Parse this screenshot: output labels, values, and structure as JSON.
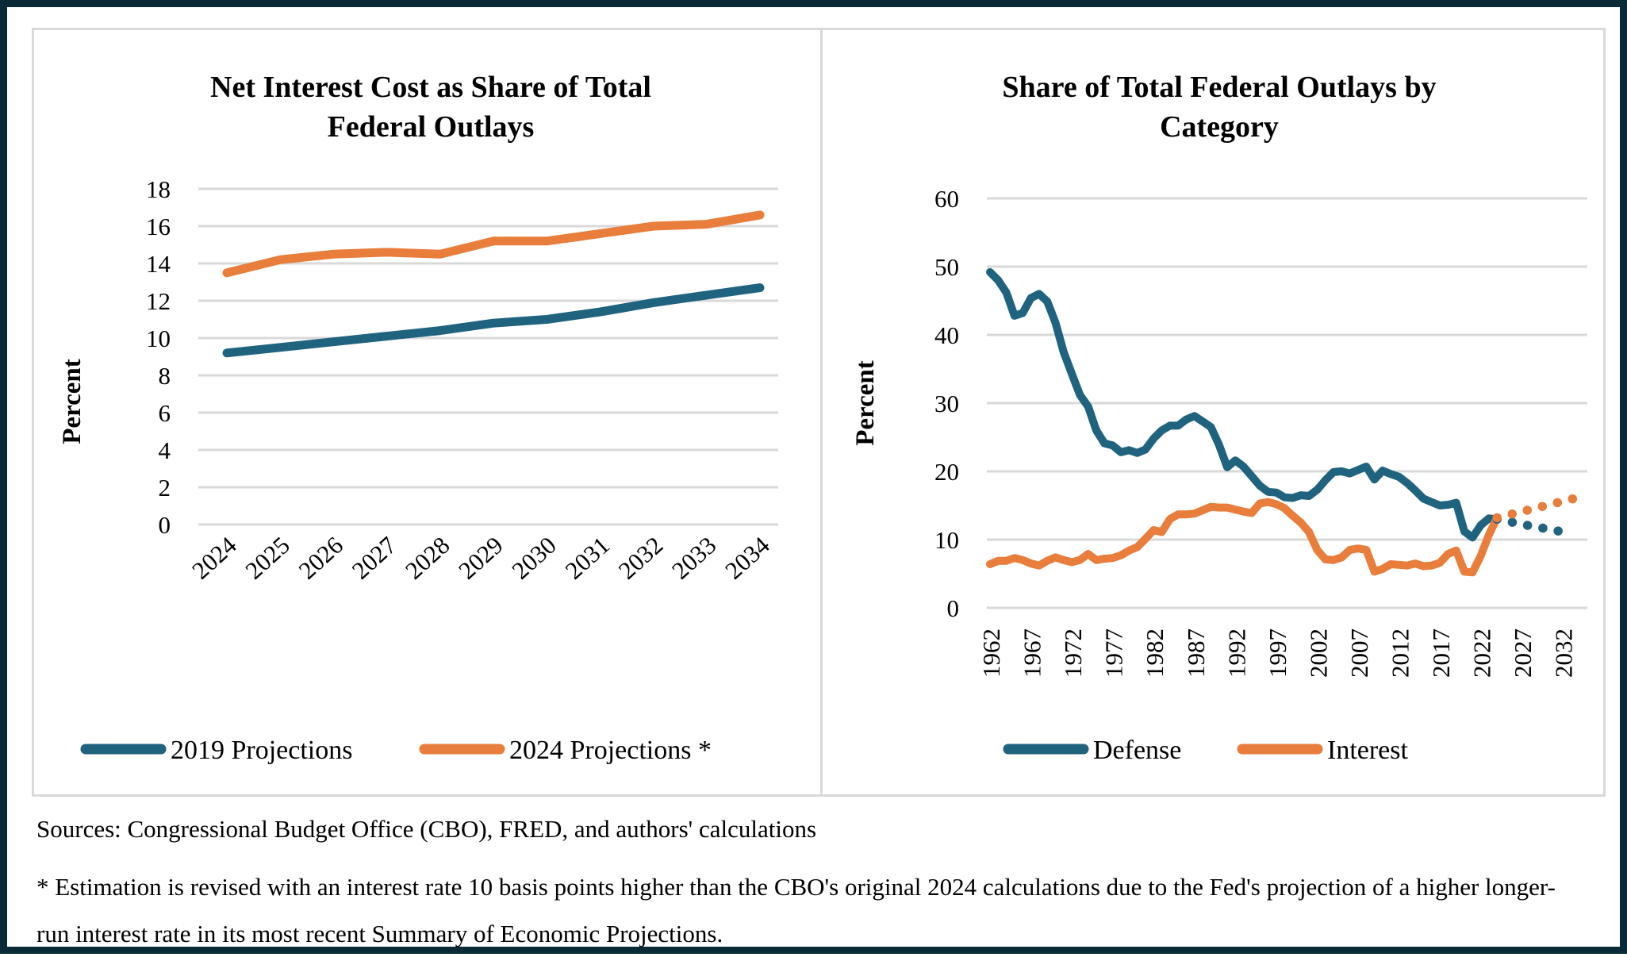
{
  "frame": {
    "outer_border_color": "#0a2a38",
    "panel_border_color": "#d9d9d9",
    "gridline_color": "#d9d9d9",
    "defense_blue": "#20637f",
    "interest_orange": "#e87d3c"
  },
  "footer": {
    "sources": "Sources: Congressional Budget Office (CBO), FRED, and authors' calculations",
    "footnote": "* Estimation is revised with an interest rate 10 basis points higher than the CBO's original 2024 calculations due to the Fed's projection of a higher longer-run interest rate in its most recent Summary of Economic Projections."
  },
  "chart_data": [
    {
      "type": "line",
      "title": "Net Interest Cost as Share of Total Federal Outlays",
      "title_lines": [
        "Net Interest Cost as Share of Total",
        "Federal Outlays"
      ],
      "ylabel": "Percent",
      "ylim": [
        0,
        18
      ],
      "ytick_step": 2,
      "grid": true,
      "legend_position": "bottom",
      "xrange": [
        2024,
        2034
      ],
      "xticks": [
        2024,
        2025,
        2026,
        2027,
        2028,
        2029,
        2030,
        2031,
        2032,
        2033,
        2034
      ],
      "series": [
        {
          "name": "2019 Projections",
          "color": "#20637f",
          "style": "solid",
          "in_legend": true,
          "x_start": 2024,
          "values": [
            9.2,
            9.5,
            9.8,
            10.1,
            10.4,
            10.8,
            11.0,
            11.4,
            11.9,
            12.3,
            12.7
          ]
        },
        {
          "name": "2024 Projections *",
          "color": "#e87d3c",
          "style": "solid",
          "in_legend": true,
          "x_start": 2024,
          "values": [
            13.5,
            14.2,
            14.5,
            14.6,
            14.5,
            15.2,
            15.2,
            15.6,
            16.0,
            16.1,
            16.6
          ]
        }
      ]
    },
    {
      "type": "line",
      "title": "Share of Total Federal Outlays by Category",
      "title_lines": [
        "Share of Total Federal Outlays by",
        "Category"
      ],
      "ylabel": "Percent",
      "ylim": [
        0,
        60
      ],
      "ytick_step": 10,
      "grid": true,
      "legend_position": "bottom",
      "xrange": [
        1962,
        2034
      ],
      "xticks": [
        1962,
        1967,
        1972,
        1977,
        1982,
        1987,
        1992,
        1997,
        2002,
        2007,
        2012,
        2017,
        2022,
        2027,
        2032
      ],
      "series": [
        {
          "name": "Defense",
          "color": "#20637f",
          "style": "solid",
          "in_legend": true,
          "x_start": 1962,
          "values": [
            49.2,
            48.0,
            46.2,
            42.8,
            43.2,
            45.4,
            46.0,
            44.9,
            41.8,
            37.5,
            34.3,
            31.2,
            29.5,
            26.0,
            24.1,
            23.8,
            22.8,
            23.1,
            22.7,
            23.2,
            24.8,
            26.0,
            26.7,
            26.7,
            27.6,
            28.1,
            27.3,
            26.5,
            23.9,
            20.6,
            21.6,
            20.7,
            19.3,
            17.9,
            17.0,
            16.9,
            16.2,
            16.1,
            16.5,
            16.4,
            17.3,
            18.7,
            19.9,
            20.0,
            19.7,
            20.2,
            20.7,
            18.8,
            20.1,
            19.6,
            19.2,
            18.3,
            17.2,
            16.0,
            15.5,
            15.0,
            15.1,
            15.4,
            11.2,
            10.3,
            12.1,
            13.1,
            13.0
          ]
        },
        {
          "name": "Interest",
          "color": "#e87d3c",
          "style": "solid",
          "in_legend": true,
          "x_start": 1962,
          "values": [
            6.4,
            6.9,
            6.9,
            7.3,
            7.0,
            6.5,
            6.2,
            6.9,
            7.4,
            7.0,
            6.7,
            7.0,
            7.9,
            7.0,
            7.2,
            7.3,
            7.7,
            8.4,
            8.9,
            10.1,
            11.4,
            11.1,
            13.0,
            13.7,
            13.7,
            13.8,
            14.3,
            14.8,
            14.7,
            14.7,
            14.4,
            14.1,
            13.9,
            15.3,
            15.5,
            15.2,
            14.6,
            13.5,
            12.5,
            11.1,
            8.5,
            7.1,
            7.0,
            7.4,
            8.5,
            8.7,
            8.5,
            5.3,
            5.7,
            6.4,
            6.3,
            6.2,
            6.5,
            6.1,
            6.2,
            6.6,
            7.9,
            8.4,
            5.3,
            5.2,
            7.6,
            10.7,
            13.2
          ]
        },
        {
          "name": "Defense projection",
          "color": "#20637f",
          "style": "dotted",
          "in_legend": false,
          "x_start": 2024,
          "values": [
            13.0,
            12.8,
            12.5,
            12.3,
            12.0,
            11.8,
            11.6,
            11.4,
            11.1,
            10.9
          ]
        },
        {
          "name": "Interest projection",
          "color": "#e87d3c",
          "style": "dotted",
          "in_legend": false,
          "x_start": 2024,
          "values": [
            13.2,
            13.5,
            13.8,
            14.1,
            14.4,
            14.7,
            15.0,
            15.3,
            15.6,
            15.9,
            16.2
          ]
        }
      ]
    }
  ]
}
